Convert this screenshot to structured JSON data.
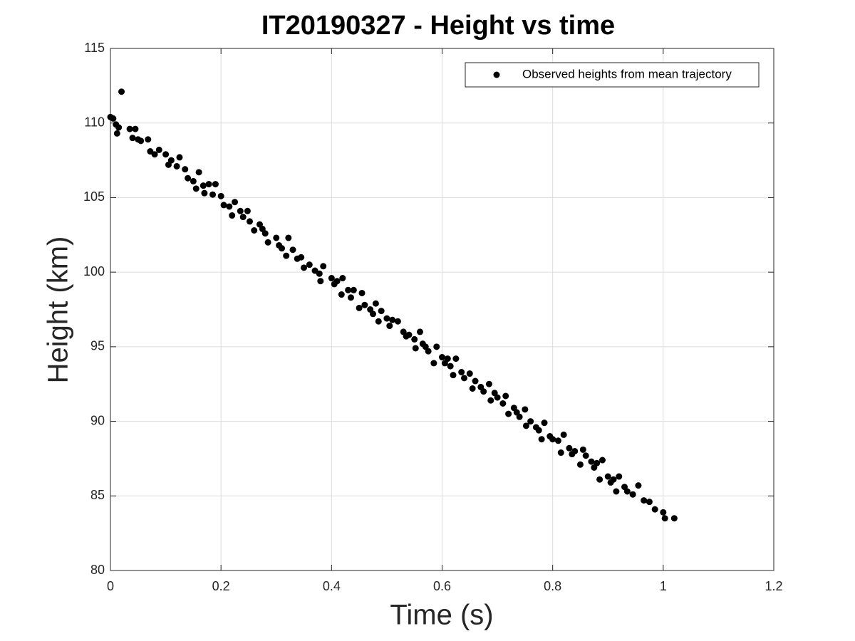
{
  "chart_data": {
    "type": "scatter",
    "title": "IT20190327 - Height vs time",
    "xlabel": "Time (s)",
    "ylabel": "Height (km)",
    "xlim": [
      0,
      1.2
    ],
    "xticks": [
      0,
      0.2,
      0.4,
      0.6,
      0.8,
      1,
      1.2
    ],
    "ylim": [
      80,
      115
    ],
    "yticks": [
      80,
      85,
      90,
      95,
      100,
      105,
      110,
      115
    ],
    "grid": true,
    "legend": "upper right",
    "x": [
      0.0,
      0.005,
      0.01,
      0.012,
      0.015,
      0.02,
      0.035,
      0.04,
      0.045,
      0.05,
      0.055,
      0.068,
      0.072,
      0.08,
      0.088,
      0.1,
      0.105,
      0.11,
      0.12,
      0.125,
      0.135,
      0.14,
      0.15,
      0.155,
      0.16,
      0.168,
      0.17,
      0.178,
      0.185,
      0.19,
      0.2,
      0.205,
      0.215,
      0.22,
      0.225,
      0.235,
      0.24,
      0.248,
      0.252,
      0.26,
      0.27,
      0.275,
      0.28,
      0.285,
      0.3,
      0.305,
      0.31,
      0.318,
      0.322,
      0.33,
      0.338,
      0.345,
      0.35,
      0.36,
      0.37,
      0.378,
      0.38,
      0.385,
      0.4,
      0.405,
      0.41,
      0.418,
      0.42,
      0.43,
      0.435,
      0.44,
      0.45,
      0.455,
      0.46,
      0.47,
      0.475,
      0.48,
      0.485,
      0.49,
      0.5,
      0.505,
      0.51,
      0.52,
      0.53,
      0.535,
      0.54,
      0.55,
      0.552,
      0.56,
      0.565,
      0.57,
      0.575,
      0.585,
      0.59,
      0.6,
      0.605,
      0.61,
      0.615,
      0.62,
      0.625,
      0.635,
      0.64,
      0.65,
      0.655,
      0.66,
      0.67,
      0.675,
      0.685,
      0.688,
      0.695,
      0.7,
      0.71,
      0.715,
      0.72,
      0.73,
      0.735,
      0.74,
      0.75,
      0.752,
      0.76,
      0.77,
      0.775,
      0.78,
      0.785,
      0.795,
      0.8,
      0.81,
      0.815,
      0.82,
      0.83,
      0.835,
      0.84,
      0.85,
      0.855,
      0.86,
      0.87,
      0.875,
      0.88,
      0.885,
      0.89,
      0.9,
      0.905,
      0.91,
      0.915,
      0.92,
      0.93,
      0.935,
      0.945,
      0.955,
      0.965,
      0.975,
      0.985,
      1.0,
      1.003,
      1.02
    ],
    "series": [
      {
        "name": "Observed heights from mean trajectory",
        "color": "#000000",
        "values": [
          110.4,
          110.3,
          109.9,
          109.3,
          109.7,
          112.1,
          109.6,
          109.0,
          109.6,
          108.9,
          108.8,
          108.9,
          108.1,
          107.9,
          108.2,
          107.9,
          107.2,
          107.5,
          107.1,
          107.7,
          106.9,
          106.3,
          106.1,
          105.6,
          106.7,
          105.8,
          105.3,
          105.9,
          105.2,
          105.9,
          105.1,
          104.5,
          104.4,
          103.8,
          104.7,
          104.1,
          103.7,
          104.1,
          103.4,
          102.8,
          103.2,
          102.9,
          102.6,
          102.0,
          102.3,
          101.8,
          101.6,
          101.1,
          102.3,
          101.5,
          100.9,
          101.0,
          100.3,
          100.5,
          100.1,
          99.9,
          99.4,
          100.4,
          99.6,
          99.2,
          99.4,
          98.5,
          99.6,
          98.8,
          98.3,
          98.8,
          97.6,
          98.6,
          97.8,
          97.5,
          97.2,
          97.9,
          96.7,
          97.4,
          96.9,
          96.4,
          96.8,
          96.7,
          96.0,
          95.7,
          95.8,
          95.5,
          94.9,
          96.0,
          95.2,
          95.0,
          94.7,
          93.9,
          95.0,
          94.3,
          93.9,
          94.2,
          93.7,
          93.1,
          94.2,
          93.3,
          92.9,
          93.2,
          92.2,
          92.7,
          92.3,
          92.0,
          92.5,
          91.4,
          91.9,
          91.6,
          91.2,
          91.7,
          90.5,
          90.9,
          90.6,
          90.3,
          90.8,
          89.7,
          90.0,
          89.6,
          89.4,
          88.8,
          89.9,
          89.0,
          88.8,
          88.7,
          87.9,
          89.1,
          88.2,
          87.8,
          88.0,
          87.1,
          88.1,
          87.7,
          87.3,
          86.9,
          87.2,
          86.1,
          87.4,
          86.3,
          85.9,
          86.1,
          85.3,
          86.3,
          85.6,
          85.3,
          85.1,
          85.7,
          84.7,
          84.6,
          84.1,
          83.9,
          83.5,
          83.5
        ]
      }
    ]
  }
}
